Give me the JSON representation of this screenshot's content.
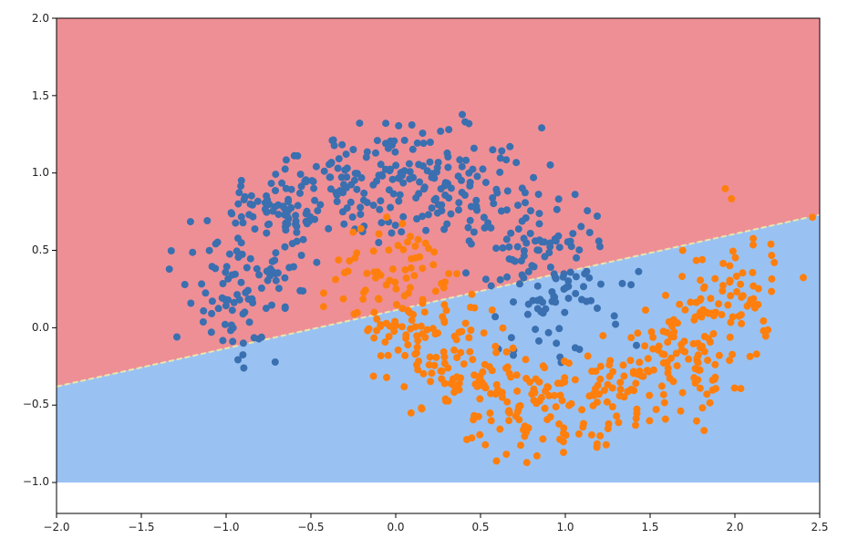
{
  "chart_data": {
    "type": "scatter",
    "title": "",
    "xlabel": "",
    "ylabel": "",
    "xlim": [
      -2.0,
      2.5
    ],
    "ylim": [
      -1.2,
      2.0
    ],
    "xticks": [
      "−2.0",
      "−1.5",
      "−1.0",
      "−0.5",
      "0.0",
      "0.5",
      "1.0",
      "1.5",
      "2.0",
      "2.5"
    ],
    "yticks": [
      "−1.0",
      "−0.5",
      "0.0",
      "0.5",
      "1.0",
      "1.5",
      "2.0"
    ],
    "grid": false,
    "legend": "none",
    "decision_regions": {
      "x_range": [
        -2.0,
        2.5
      ],
      "y_range": [
        -1.0,
        2.0
      ],
      "boundary_line": [
        [
          -2.0,
          -0.38
        ],
        [
          2.5,
          0.73
        ]
      ],
      "upper_region_color": "#ee8f96",
      "lower_region_color": "#99c2f3",
      "boundary_color": "#e8e7a8"
    },
    "series": [
      {
        "color": "#3a6fb0",
        "generator": {
          "center": [
            0.0,
            0.0
          ],
          "radius": 1.0,
          "theta_range_deg": [
            0,
            180
          ],
          "noise": 0.18,
          "count": 500,
          "seed": 7
        }
      },
      {
        "color": "#ff7f0e",
        "generator": {
          "center": [
            1.0,
            0.5
          ],
          "radius": 1.0,
          "theta_range_deg": [
            180,
            360
          ],
          "noise": 0.18,
          "count": 500,
          "seed": 19
        }
      }
    ]
  }
}
